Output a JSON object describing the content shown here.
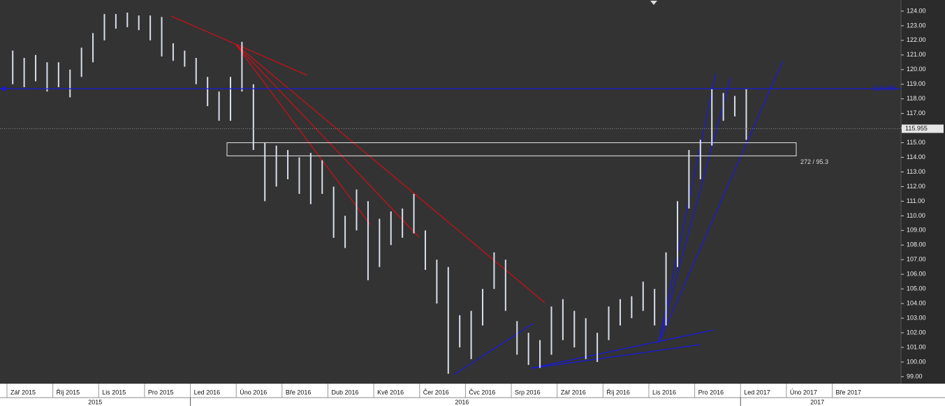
{
  "chart_data": {
    "type": "hl",
    "categories": [
      "Zář 2015",
      null,
      null,
      null,
      "Říj 2015",
      null,
      null,
      null,
      "Lis 2015",
      null,
      null,
      null,
      "Pro 2015",
      null,
      null,
      null,
      "Led 2016",
      null,
      null,
      null,
      "Úno 2016",
      null,
      null,
      null,
      "Bře 2016",
      null,
      null,
      null,
      "Dub 2016",
      null,
      null,
      null,
      "Kvě 2016",
      null,
      null,
      null,
      "Čer 2016",
      null,
      null,
      null,
      "Čvc 2016",
      null,
      null,
      null,
      "Srp 2016",
      null,
      null,
      null,
      "Zář 2016",
      null,
      null,
      null,
      "Říj 2016",
      null,
      null,
      null,
      "Lis 2016",
      null,
      null,
      null,
      "Pro 2016",
      null,
      null,
      null,
      "Led 2017",
      null,
      null,
      null,
      "Úno 2017",
      null,
      null,
      null,
      "Bře 2017",
      null,
      null,
      null,
      null,
      null
    ],
    "years": [
      "2015",
      "2016",
      "2017"
    ],
    "high": [
      121.3,
      120.8,
      121.0,
      120.5,
      120.5,
      120.0,
      121.5,
      122.5,
      123.8,
      123.8,
      123.9,
      123.7,
      123.7,
      123.6,
      121.8,
      121.3,
      120.8,
      119.5,
      118.5,
      119.5,
      121.9,
      119.0,
      115.0,
      114.8,
      114.5,
      114.0,
      114.3,
      113.8,
      112.0,
      110.0,
      111.8,
      111.0,
      109.8,
      110.3,
      110.5,
      111.5,
      109.0,
      107.0,
      106.5,
      103.2,
      103.5,
      105.0,
      107.5,
      107.0,
      102.8,
      102.0,
      101.5,
      103.8,
      104.3,
      103.5,
      103.0,
      102.0,
      103.8,
      104.3,
      104.5,
      105.5,
      105.0,
      107.5,
      111.0,
      114.5,
      115.2,
      118.7,
      118.4,
      118.2,
      118.7,
      null,
      null,
      null,
      null,
      null,
      null,
      null,
      null,
      null,
      null,
      null,
      null,
      null
    ],
    "low": [
      119.0,
      118.8,
      119.2,
      118.5,
      118.8,
      118.1,
      119.5,
      120.5,
      122.0,
      122.8,
      122.9,
      122.7,
      122.0,
      120.9,
      120.6,
      120.2,
      119.0,
      117.5,
      116.5,
      116.5,
      118.5,
      114.5,
      111.0,
      112.0,
      112.5,
      111.5,
      110.8,
      111.5,
      108.5,
      107.8,
      109.0,
      105.6,
      106.5,
      108.0,
      108.5,
      108.8,
      106.3,
      104.0,
      99.2,
      101.0,
      100.2,
      102.5,
      105.0,
      103.5,
      100.5,
      99.8,
      99.6,
      100.5,
      101.5,
      101.0,
      100.2,
      100.0,
      101.5,
      102.5,
      103.0,
      103.5,
      102.5,
      102.5,
      106.5,
      110.5,
      112.5,
      114.8,
      116.5,
      116.8,
      115.2,
      null,
      null,
      null,
      null,
      null,
      null,
      null,
      null,
      null,
      null,
      null,
      null,
      null
    ],
    "color": "#d8dfec",
    "hline": 118.688,
    "hline_color": "#1a1adc",
    "last_price": 115.955,
    "zone": {
      "top": 115.0,
      "bottom": 114.1,
      "label": "272 / 95.3"
    },
    "ylim": [
      98.52,
      124.76
    ],
    "yticks": [
      {
        "value": 99,
        "label": "99.00"
      },
      {
        "value": 100,
        "label": "100.00"
      },
      {
        "value": 101,
        "label": "101.00"
      },
      {
        "value": 102,
        "label": "102.00"
      },
      {
        "value": 103,
        "label": "103.00"
      },
      {
        "value": 104,
        "label": "104.00"
      },
      {
        "value": 105,
        "label": "105.00"
      },
      {
        "value": 106,
        "label": "106.00"
      },
      {
        "value": 107,
        "label": "107.00"
      },
      {
        "value": 108,
        "label": "108.00"
      },
      {
        "value": 109,
        "label": "109.00"
      },
      {
        "value": 110,
        "label": "110.00"
      },
      {
        "value": 111,
        "label": "111.00"
      },
      {
        "value": 112,
        "label": "112.00"
      },
      {
        "value": 113,
        "label": "113.00"
      },
      {
        "value": 114,
        "label": "114.00"
      },
      {
        "value": 115,
        "label": "115.00"
      },
      {
        "value": 116,
        "label": "116.00"
      },
      {
        "value": 117,
        "label": "117.00"
      },
      {
        "value": 118,
        "label": "118.00"
      },
      {
        "value": 119,
        "label": "119.00"
      },
      {
        "value": 120,
        "label": "120.00"
      },
      {
        "value": 121,
        "label": "121.00"
      },
      {
        "value": 122,
        "label": "122.00"
      },
      {
        "value": 123,
        "label": "123.00"
      },
      {
        "value": 124,
        "label": "124.00"
      }
    ]
  }
}
